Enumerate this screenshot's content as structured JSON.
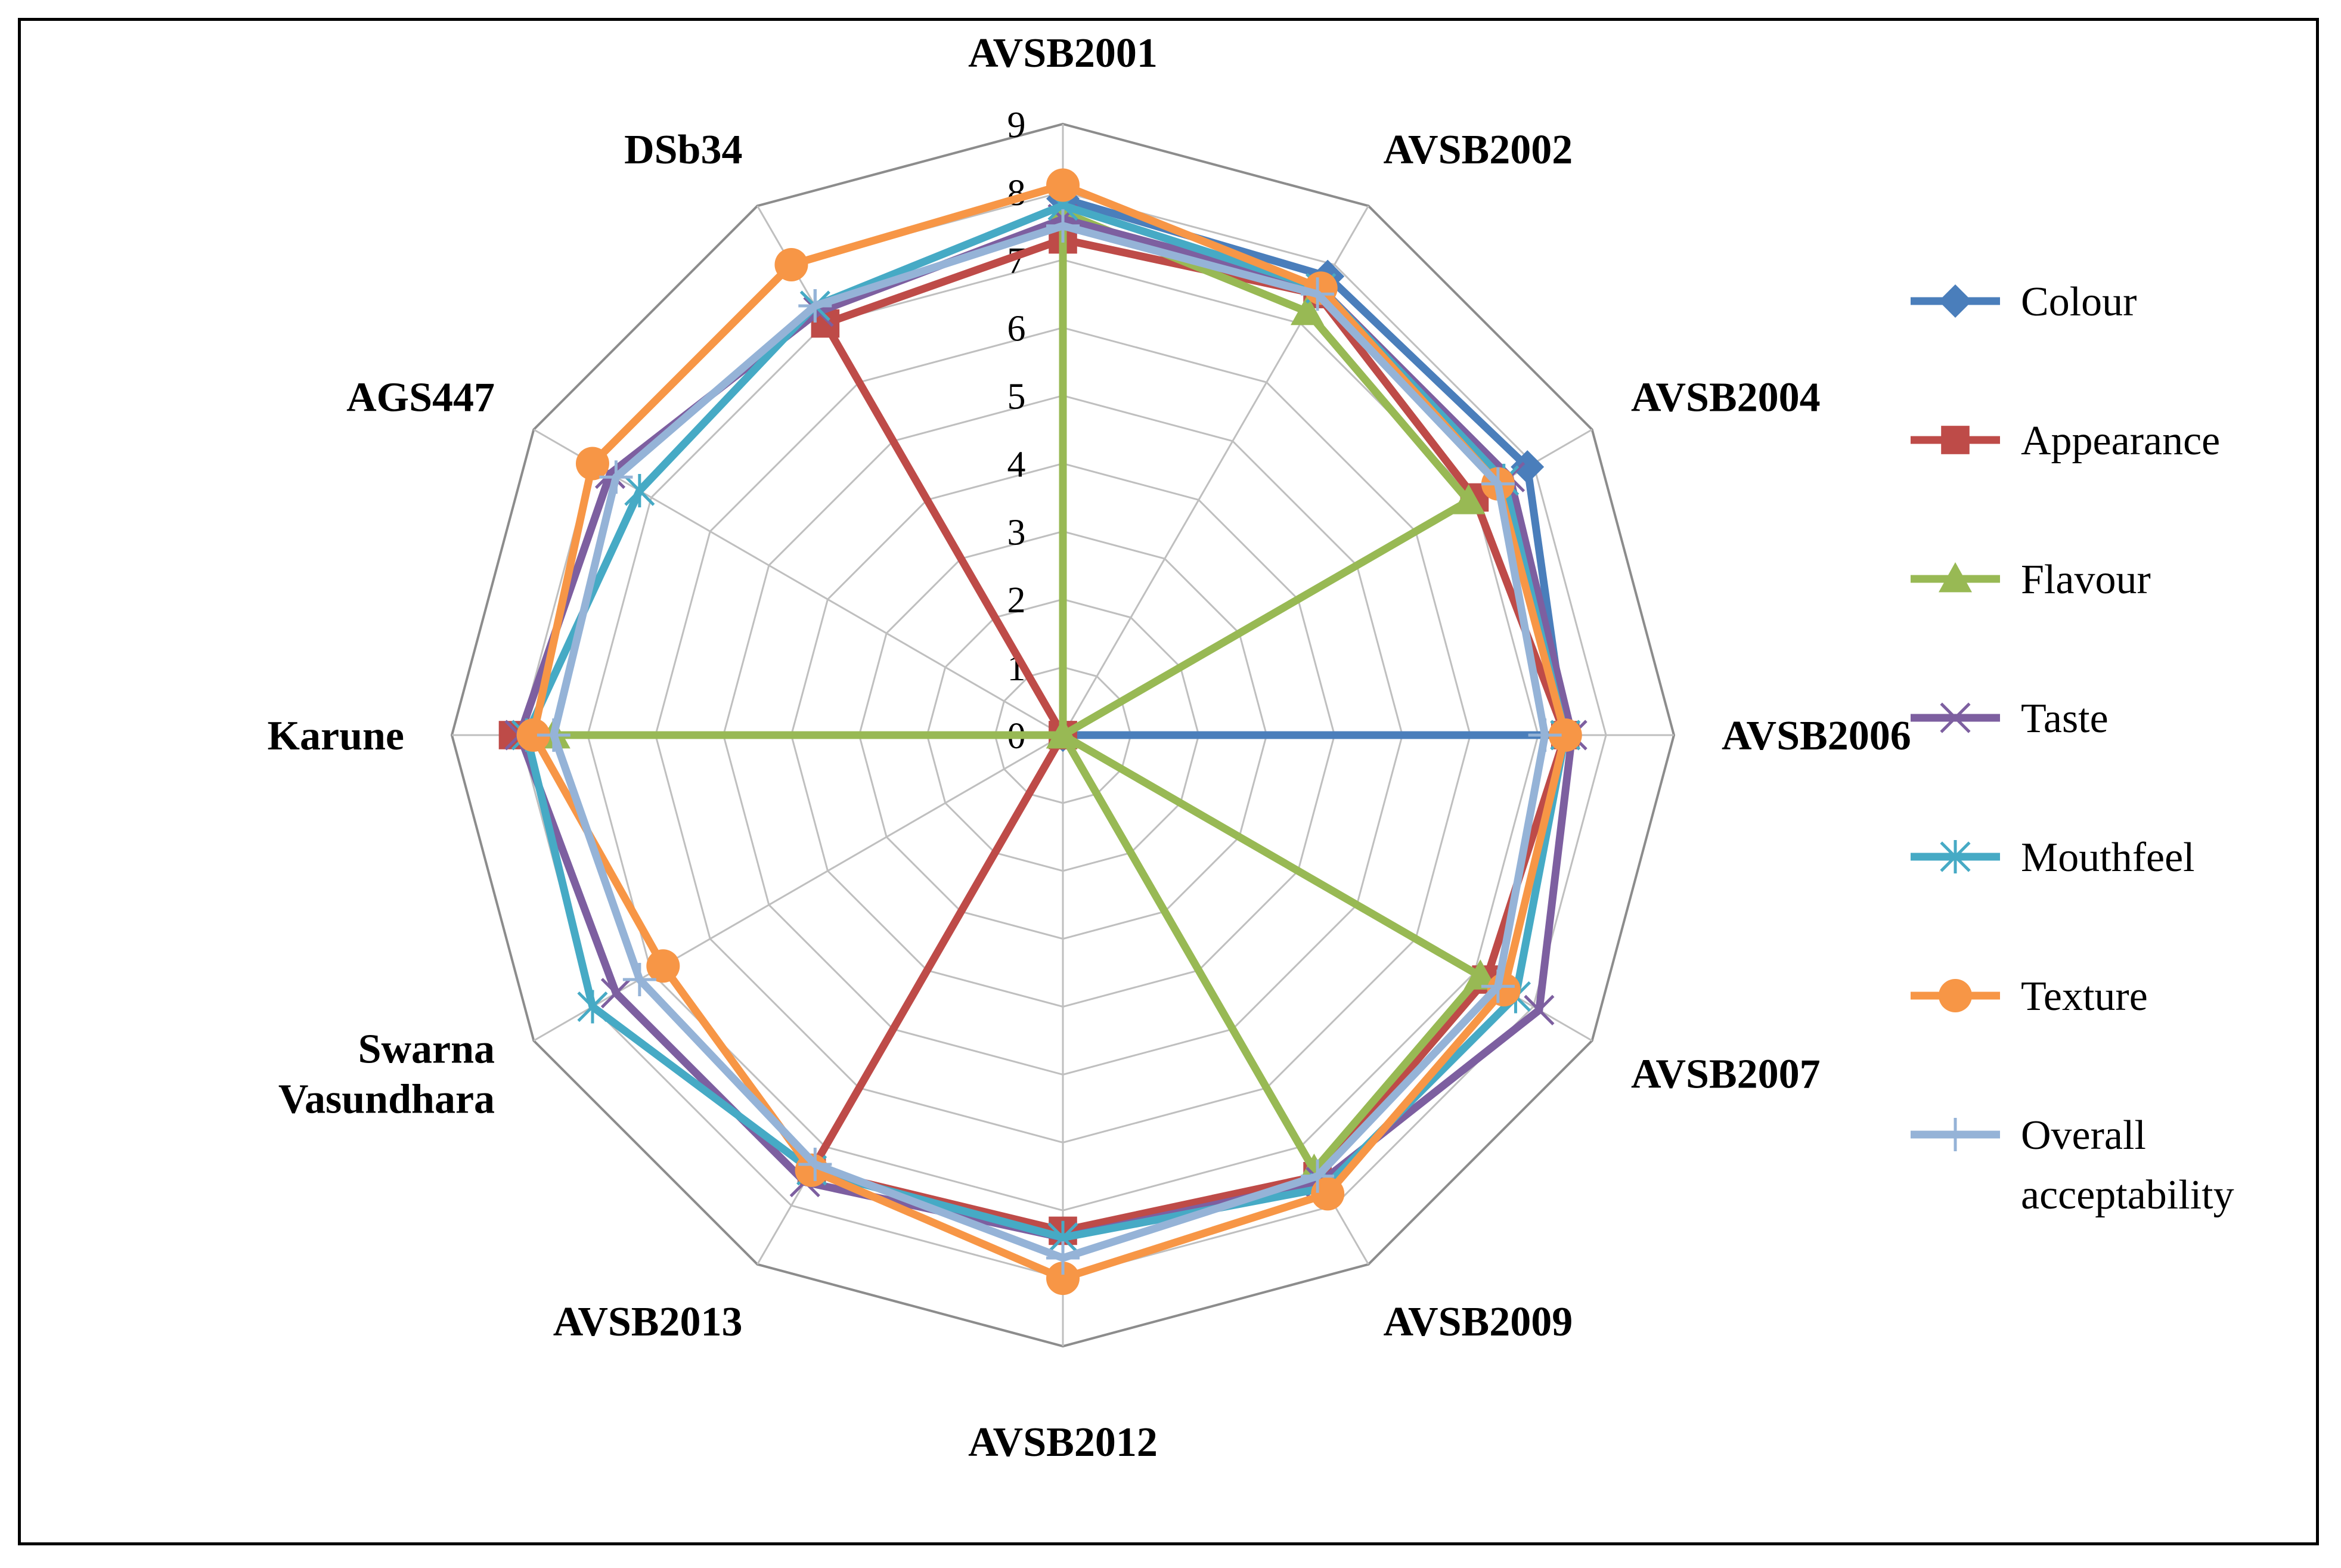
{
  "chart_data": {
    "type": "radar",
    "categories": [
      "AVSB2001",
      "AVSB2002",
      "AVSB2004",
      "AVSB2006",
      "AVSB2007",
      "AVSB2009",
      "AVSB2012",
      "AVSB2013",
      "Swarna Vasundhara",
      "Karune",
      "AGS447",
      "DSb34"
    ],
    "category_lines": [
      [
        "AVSB2001"
      ],
      [
        "AVSB2002"
      ],
      [
        "AVSB2004"
      ],
      [
        "AVSB2006"
      ],
      [
        "AVSB2007"
      ],
      [
        "AVSB2009"
      ],
      [
        "AVSB2012"
      ],
      [
        "AVSB2013"
      ],
      [
        "Swarna",
        "Vasundhara"
      ],
      [
        "Karune"
      ],
      [
        "AGS447"
      ],
      [
        "DSb34"
      ]
    ],
    "rlim": [
      0,
      9
    ],
    "ticks": [
      "0",
      "1",
      "2",
      "3",
      "4",
      "5",
      "6",
      "7",
      "8",
      "9"
    ],
    "grid": true,
    "legend_position": "right",
    "series": [
      {
        "name": "Colour",
        "color": "#4a7ebb",
        "marker": "diamond",
        "values": [
          7.9,
          7.8,
          7.9,
          7.4,
          0,
          0,
          0,
          0,
          0,
          0,
          0,
          0
        ]
      },
      {
        "name": "Appearance",
        "color": "#be4b48",
        "marker": "square",
        "values": [
          7.3,
          7.5,
          7.0,
          7.4,
          7.2,
          7.5,
          7.3,
          7.4,
          0,
          8.1,
          0,
          7.0
        ]
      },
      {
        "name": "Flavour",
        "color": "#98b954",
        "marker": "triangle",
        "values": [
          7.7,
          7.2,
          6.9,
          0,
          7.1,
          7.4,
          0,
          0,
          0,
          7.5,
          0,
          0
        ]
      },
      {
        "name": "Taste",
        "color": "#7d5fa0",
        "marker": "x",
        "values": [
          7.6,
          7.6,
          7.6,
          7.5,
          8.1,
          7.6,
          7.4,
          7.6,
          7.6,
          8.0,
          7.7,
          7.2
        ]
      },
      {
        "name": "Mouthfeel",
        "color": "#46aac5",
        "marker": "star",
        "values": [
          7.8,
          7.6,
          7.5,
          7.4,
          7.7,
          7.7,
          7.4,
          7.4,
          8.0,
          7.9,
          7.2,
          7.3
        ]
      },
      {
        "name": "Texture",
        "color": "#f79646",
        "marker": "circle",
        "values": [
          8.1,
          7.6,
          7.4,
          7.4,
          7.5,
          7.8,
          8.0,
          7.4,
          6.8,
          7.8,
          8.0,
          8.0
        ]
      },
      {
        "name": "Overall acceptability",
        "color": "#95b3d7",
        "marker": "plus",
        "values": [
          7.5,
          7.5,
          7.4,
          7.1,
          7.4,
          7.5,
          7.7,
          7.3,
          7.2,
          7.5,
          7.6,
          7.3
        ]
      }
    ],
    "legend_lines": [
      [
        "Colour"
      ],
      [
        "Appearance"
      ],
      [
        "Flavour"
      ],
      [
        "Taste"
      ],
      [
        "Mouthfeel"
      ],
      [
        "Texture"
      ],
      [
        "Overall",
        "acceptability"
      ]
    ]
  }
}
